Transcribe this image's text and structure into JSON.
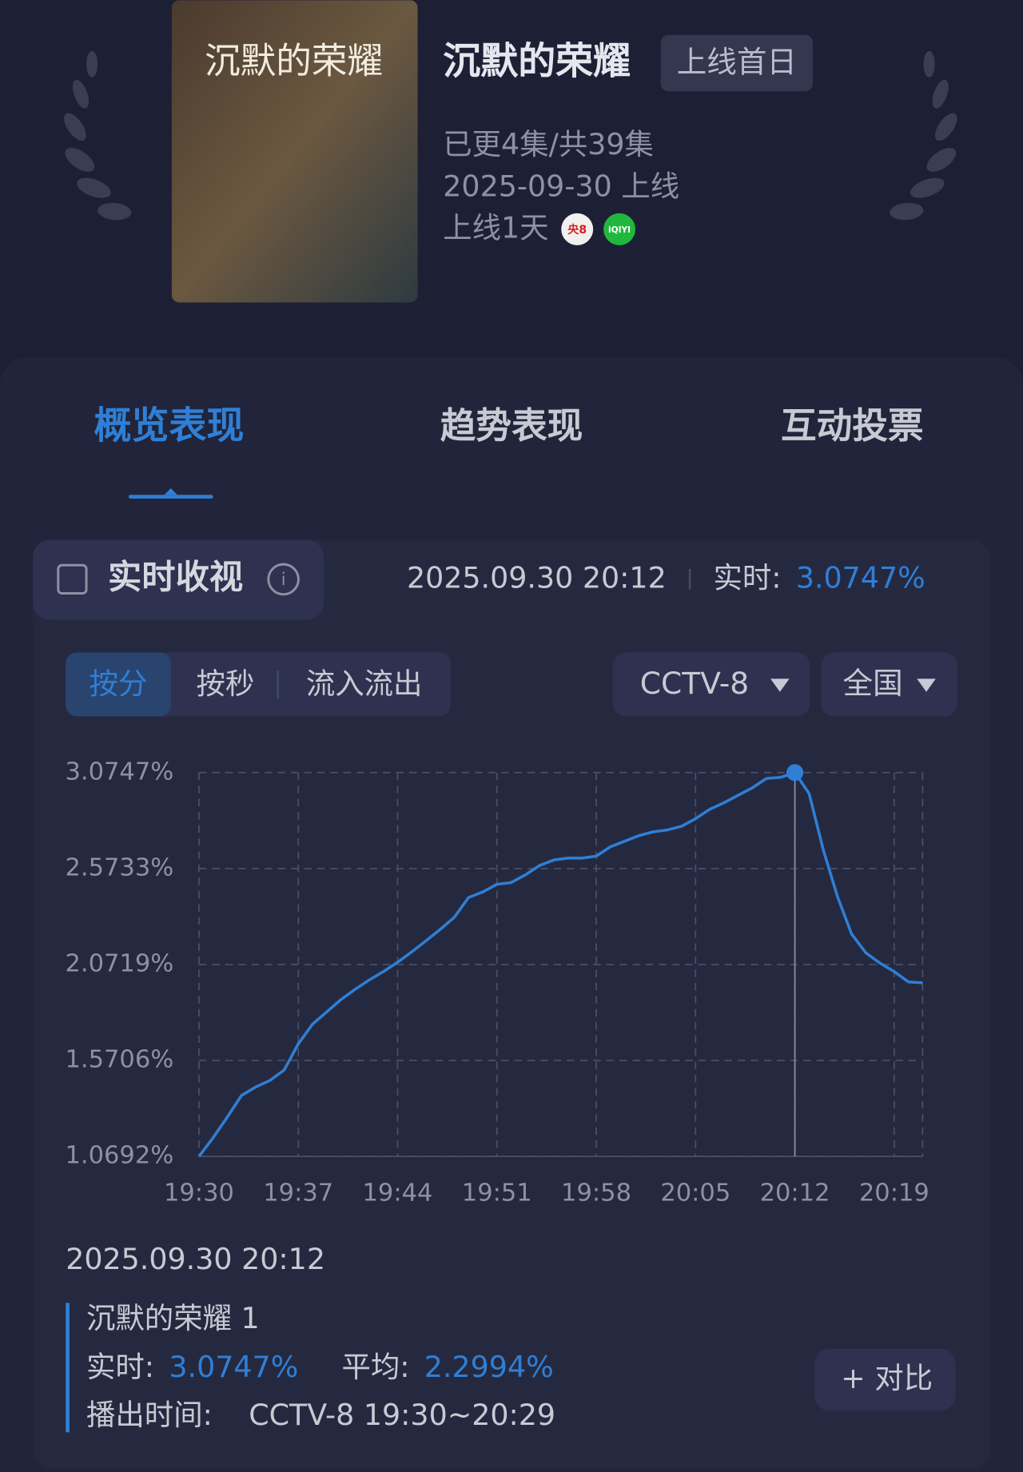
{
  "header": {
    "poster_title": "沉默的荣耀",
    "title": "沉默的荣耀",
    "badge": "上线首日",
    "episodes": "已更4集/共39集",
    "release": "2025-09-30 上线",
    "days_online": "上线1天",
    "channel_icons": [
      "央8",
      "iQIYI"
    ]
  },
  "tabs": [
    "概览表现",
    "趋势表现",
    "互动投票"
  ],
  "realtime": {
    "title": "实时收视",
    "timestamp": "2025.09.30 20:12",
    "label": "实时:",
    "value": "3.0747%"
  },
  "toggles": [
    "按分",
    "按秒",
    "流入流出"
  ],
  "dropdowns": [
    "CCTV-8",
    "全国"
  ],
  "chart_data": {
    "type": "line",
    "color": "#2f7fd6",
    "grid": true,
    "categories": [
      "19:30",
      null,
      null,
      null,
      null,
      null,
      null,
      "19:37",
      null,
      null,
      null,
      null,
      null,
      null,
      "19:44",
      null,
      null,
      null,
      null,
      null,
      null,
      "19:51",
      null,
      null,
      null,
      null,
      null,
      null,
      "19:58",
      null,
      null,
      null,
      null,
      null,
      null,
      "20:05",
      null,
      null,
      null,
      null,
      null,
      null,
      "20:12",
      null,
      null,
      null,
      null,
      null,
      null,
      "20:19",
      null,
      null
    ],
    "values": [
      1.0692,
      1.167,
      1.275,
      1.388,
      1.432,
      1.466,
      1.52,
      1.657,
      1.76,
      1.824,
      1.888,
      1.942,
      1.991,
      2.035,
      2.084,
      2.138,
      2.196,
      2.255,
      2.319,
      2.422,
      2.451,
      2.491,
      2.5,
      2.54,
      2.589,
      2.618,
      2.628,
      2.628,
      2.638,
      2.687,
      2.716,
      2.745,
      2.765,
      2.775,
      2.794,
      2.834,
      2.883,
      2.917,
      2.956,
      2.995,
      3.044,
      3.05,
      3.0747,
      2.966,
      2.672,
      2.427,
      2.231,
      2.133,
      2.079,
      2.035,
      1.981,
      1.976
    ],
    "ylim": [
      1.0692,
      3.0747
    ],
    "yticks": [
      {
        "value": 1.0692,
        "label": "1.0692%"
      },
      {
        "value": 1.5706,
        "label": "1.5706%"
      },
      {
        "value": 2.0719,
        "label": "2.0719%"
      },
      {
        "value": 2.5733,
        "label": "2.5733%"
      },
      {
        "value": 3.0747,
        "label": "3.0747%"
      }
    ]
  },
  "footer": {
    "timestamp": "2025.09.30 20:12",
    "show": "沉默的荣耀 1",
    "realtime_label": "实时:",
    "realtime_value": "3.0747%",
    "average_label": "平均:",
    "average_value": "2.2994%",
    "airtime_label": "播出时间:",
    "airtime_value": "CCTV-8 19:30~20:29",
    "compare_button": "+ 对比"
  }
}
